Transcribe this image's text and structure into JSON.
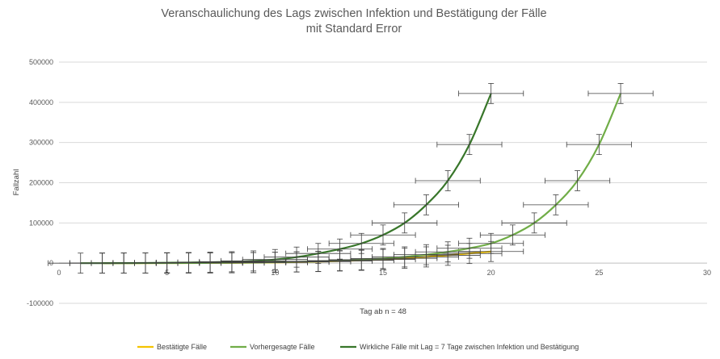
{
  "chart_data": {
    "type": "line",
    "title": [
      "Veranschaulichung des Lags zwischen Infektion und Bestätigung der Fälle",
      "mit Standard Error"
    ],
    "xlabel": "Tag ab n = 48",
    "ylabel": "Fallzahl",
    "xlim": [
      0,
      30
    ],
    "ylim": [
      -100000,
      500000
    ],
    "x_ticks": [
      0,
      5,
      10,
      15,
      20,
      25,
      30
    ],
    "y_ticks": [
      -100000,
      0,
      100000,
      200000,
      300000,
      400000,
      500000
    ],
    "y_tick_labels": [
      "-100000",
      "0",
      "100000",
      "200000",
      "300000",
      "400000",
      "500000"
    ],
    "grid": "horizontal",
    "legend_position": "bottom",
    "x_error": 1.5,
    "series": [
      {
        "name": "Bestätigte Fälle",
        "color": "#F5C400",
        "x": [
          2,
          3,
          4,
          5,
          6,
          7,
          8,
          9,
          10,
          11,
          12,
          13,
          14,
          15,
          16,
          17,
          18,
          19,
          20
        ],
        "y": [
          50,
          100,
          150,
          250,
          400,
          600,
          900,
          1300,
          1900,
          2800,
          3900,
          5300,
          7000,
          9200,
          12000,
          15500,
          19500,
          24000,
          29000
        ],
        "y_err": 25000
      },
      {
        "name": "Vorhergesagte Fälle",
        "color": "#70AD47",
        "x": [
          2,
          3,
          4,
          5,
          6,
          7,
          8,
          9,
          10,
          11,
          12,
          13,
          14,
          15,
          16,
          17,
          18,
          19,
          20,
          21,
          22,
          23,
          24,
          25,
          26
        ],
        "y": [
          60,
          120,
          200,
          300,
          500,
          700,
          1000,
          1500,
          2200,
          3200,
          4500,
          6200,
          8500,
          11500,
          15500,
          21000,
          28000,
          37000,
          49000,
          70000,
          100000,
          145000,
          205000,
          295000,
          422000
        ],
        "y_err": 25000
      },
      {
        "name": "Wirkliche Fälle mit Lag = 7 Tage zwischen Infektion und Bestätigung",
        "color": "#38762A",
        "x": [
          1,
          2,
          3,
          4,
          5,
          6,
          7,
          8,
          9,
          10,
          11,
          12,
          13,
          14,
          15,
          16,
          17,
          18,
          19,
          20
        ],
        "y": [
          0,
          0,
          200,
          500,
          1000,
          1500,
          2200,
          3500,
          5500,
          9000,
          15000,
          24000,
          35000,
          49000,
          70000,
          100000,
          145000,
          205000,
          295000,
          422000
        ],
        "y_err": 25000
      }
    ]
  }
}
